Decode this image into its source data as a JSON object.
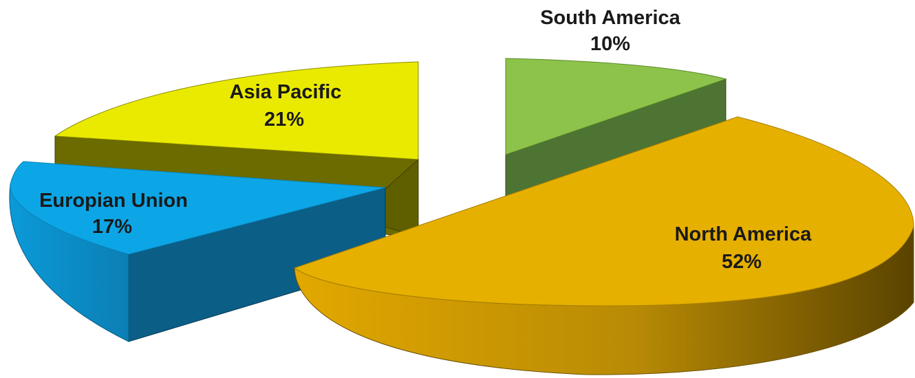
{
  "chart_data": {
    "type": "pie",
    "style": "3d-exploded",
    "title": "",
    "slices": [
      {
        "label": "North America",
        "value": 52,
        "value_label": "52%",
        "color": "#E6B000",
        "side_color": "#B58A00",
        "side_dark": "#5E4700"
      },
      {
        "label": "South America",
        "value": 10,
        "value_label": "10%",
        "color": "#8DC34A",
        "side_color": "#4E7433",
        "side_dark": "#3E5C28"
      },
      {
        "label": "Asia Pacific",
        "value": 21,
        "value_label": "21%",
        "color": "#EAEA00",
        "side_color": "#6E6E00",
        "side_dark": "#5A5A00"
      },
      {
        "label": "Europian Union",
        "value": 17,
        "value_label": "17%",
        "color": "#0CA6E6",
        "side_color": "#0C5F85",
        "side_dark": "#0A4E70"
      }
    ]
  }
}
